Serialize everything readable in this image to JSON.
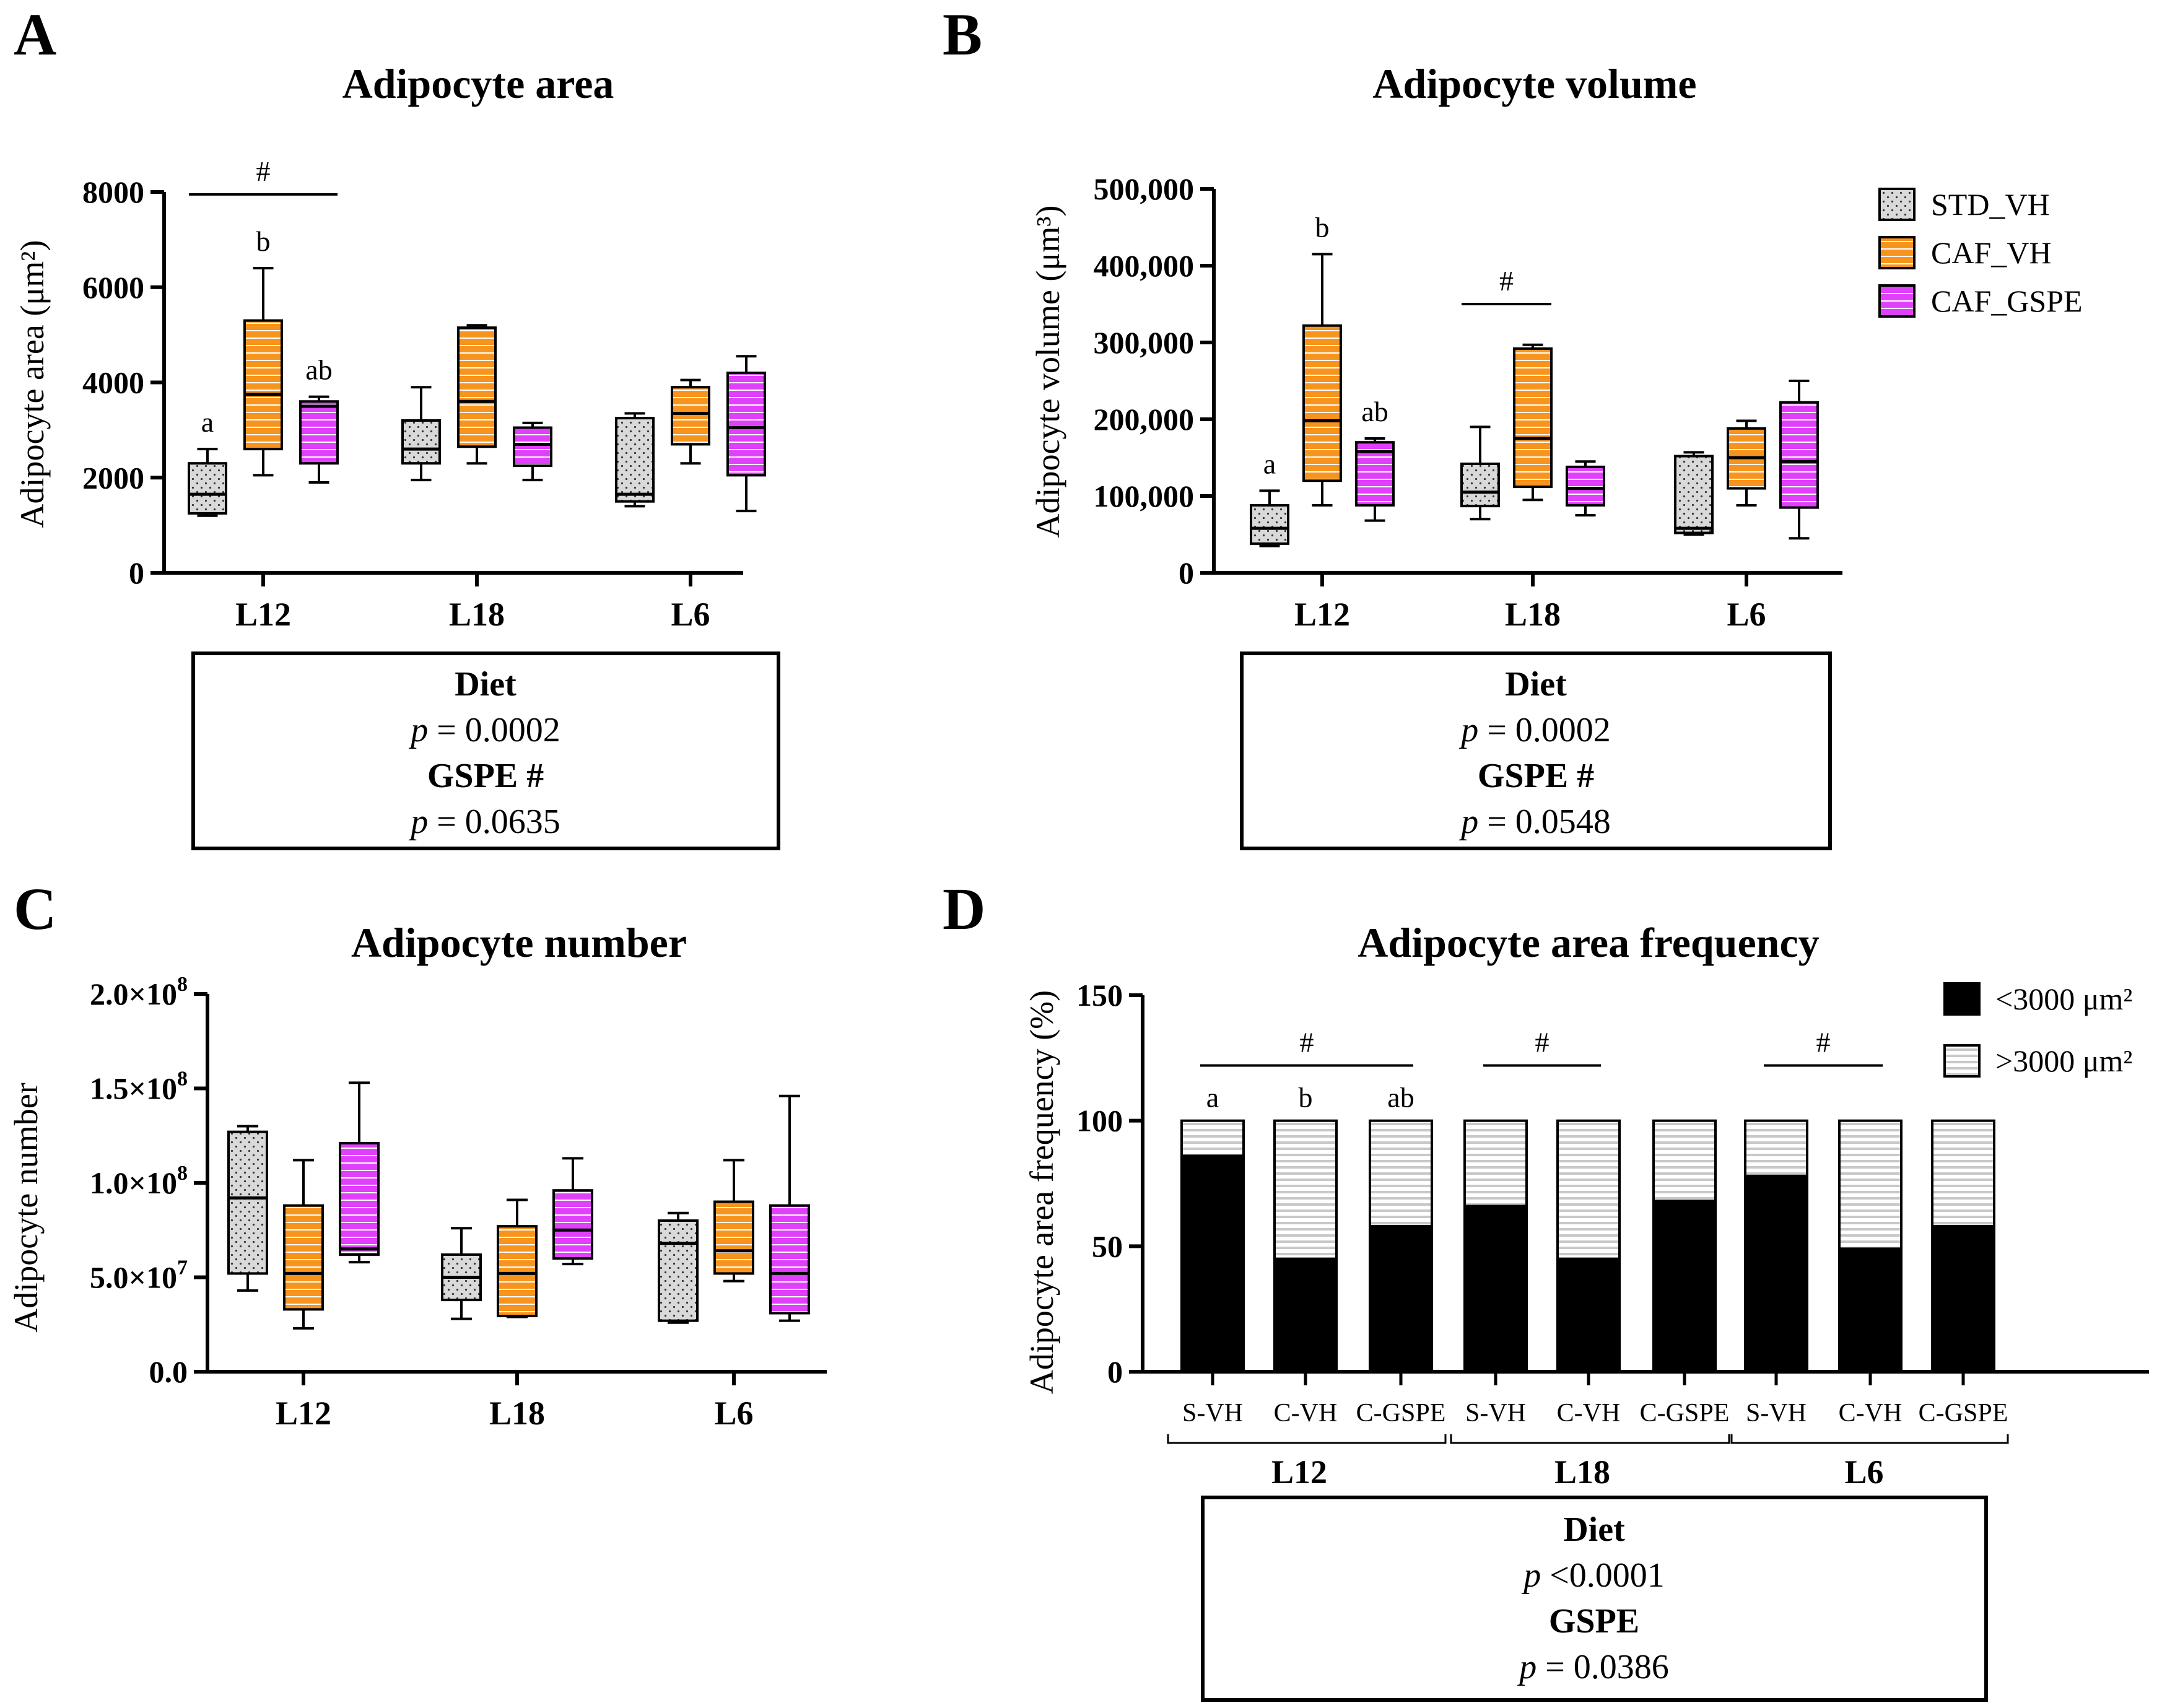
{
  "colors": {
    "std": "#d9d9d9",
    "caf": "#f7941d",
    "gspe": "#e040fb",
    "small": "#000000",
    "large": "#d0d0d0"
  },
  "legend": {
    "groups": [
      {
        "key": "std",
        "label": "STD_VH"
      },
      {
        "key": "caf",
        "label": "CAF_VH"
      },
      {
        "key": "gspe",
        "label": "CAF_GSPE"
      }
    ],
    "freq": [
      {
        "key": "small",
        "label": "<3000 μm²"
      },
      {
        "key": "large",
        "label": ">3000 μm²"
      }
    ]
  },
  "chart_data": [
    {
      "id": "A",
      "letter": "A",
      "type": "box",
      "title": "Adipocyte area",
      "ylabel": "Adipocyte area (μm²)",
      "ylim": [
        0,
        8000
      ],
      "yticks": [
        0,
        2000,
        4000,
        6000,
        8000
      ],
      "ytick_labels": [
        "0",
        "2000",
        "4000",
        "6000",
        "8000"
      ],
      "categories": [
        "L12",
        "L18",
        "L6"
      ],
      "series": [
        {
          "name": "STD_VH",
          "key": "std",
          "boxes": [
            {
              "min": 1200,
              "q1": 1250,
              "median": 1650,
              "q3": 2300,
              "max": 2600
            },
            {
              "min": 1950,
              "q1": 2300,
              "median": 2600,
              "q3": 3200,
              "max": 3900
            },
            {
              "min": 1400,
              "q1": 1500,
              "median": 1650,
              "q3": 3250,
              "max": 3350
            }
          ]
        },
        {
          "name": "CAF_VH",
          "key": "caf",
          "boxes": [
            {
              "min": 2050,
              "q1": 2600,
              "median": 3750,
              "q3": 5300,
              "max": 6400
            },
            {
              "min": 2300,
              "q1": 2650,
              "median": 3600,
              "q3": 5150,
              "max": 5200
            },
            {
              "min": 2300,
              "q1": 2700,
              "median": 3350,
              "q3": 3900,
              "max": 4050
            }
          ]
        },
        {
          "name": "CAF_GSPE",
          "key": "gspe",
          "boxes": [
            {
              "min": 1900,
              "q1": 2300,
              "median": 3500,
              "q3": 3600,
              "max": 3700
            },
            {
              "min": 1950,
              "q1": 2250,
              "median": 2700,
              "q3": 3050,
              "max": 3150
            },
            {
              "min": 1300,
              "q1": 2050,
              "median": 3050,
              "q3": 4200,
              "max": 4550
            }
          ]
        }
      ],
      "letters": [
        {
          "cat": 0,
          "series": 0,
          "text": "a"
        },
        {
          "cat": 0,
          "series": 1,
          "text": "b"
        },
        {
          "cat": 0,
          "series": 2,
          "text": "ab"
        }
      ],
      "brackets": [
        {
          "cat": 0,
          "from": 0,
          "to": 2,
          "text": "#",
          "y": 7950
        }
      ],
      "stats": {
        "l1": "Diet",
        "p1_label": "p",
        "p1_value": " = 0.0002",
        "l2": "GSPE #",
        "p2_label": "p",
        "p2_value": " = 0.0635"
      }
    },
    {
      "id": "B",
      "letter": "B",
      "type": "box",
      "title": "Adipocyte volume",
      "ylabel": "Adipocyte volume (μm³)",
      "ylim": [
        0,
        500000
      ],
      "yticks": [
        0,
        100000,
        200000,
        300000,
        400000,
        500000
      ],
      "ytick_labels": [
        "0",
        "100,000",
        "200,000",
        "300,000",
        "400,000",
        "500,000"
      ],
      "categories": [
        "L12",
        "L18",
        "L6"
      ],
      "series": [
        {
          "name": "STD_VH",
          "key": "std",
          "boxes": [
            {
              "min": 35000,
              "q1": 38000,
              "median": 58000,
              "q3": 88000,
              "max": 107000
            },
            {
              "min": 70000,
              "q1": 87000,
              "median": 105000,
              "q3": 142000,
              "max": 190000
            },
            {
              "min": 50000,
              "q1": 52000,
              "median": 58000,
              "q3": 152000,
              "max": 157000
            }
          ]
        },
        {
          "name": "CAF_VH",
          "key": "caf",
          "boxes": [
            {
              "min": 88000,
              "q1": 120000,
              "median": 198000,
              "q3": 322000,
              "max": 415000
            },
            {
              "min": 95000,
              "q1": 112000,
              "median": 175000,
              "q3": 292000,
              "max": 297000
            },
            {
              "min": 88000,
              "q1": 110000,
              "median": 150000,
              "q3": 188000,
              "max": 198000
            }
          ]
        },
        {
          "name": "CAF_GSPE",
          "key": "gspe",
          "boxes": [
            {
              "min": 68000,
              "q1": 88000,
              "median": 158000,
              "q3": 170000,
              "max": 175000
            },
            {
              "min": 75000,
              "q1": 88000,
              "median": 110000,
              "q3": 138000,
              "max": 145000
            },
            {
              "min": 45000,
              "q1": 85000,
              "median": 145000,
              "q3": 222000,
              "max": 250000
            }
          ]
        }
      ],
      "letters": [
        {
          "cat": 0,
          "series": 0,
          "text": "a"
        },
        {
          "cat": 0,
          "series": 1,
          "text": "b"
        },
        {
          "cat": 0,
          "series": 2,
          "text": "ab"
        }
      ],
      "brackets": [
        {
          "cat": 1,
          "from": 0,
          "to": 1,
          "text": "#",
          "y": 350000
        }
      ],
      "stats": {
        "l1": "Diet",
        "p1_label": "p",
        "p1_value": " = 0.0002",
        "l2": "GSPE #",
        "p2_label": "p",
        "p2_value": " = 0.0548"
      }
    },
    {
      "id": "C",
      "letter": "C",
      "type": "box",
      "title": "Adipocyte number",
      "ylabel": "Adipocyte number",
      "ylim": [
        0,
        200000000
      ],
      "yticks": [
        0,
        50000000,
        100000000,
        150000000,
        200000000
      ],
      "ytick_labels": [
        {
          "m": "0.0",
          "e": ""
        },
        {
          "m": "5.0×10",
          "e": "7"
        },
        {
          "m": "1.0×10",
          "e": "8"
        },
        {
          "m": "1.5×10",
          "e": "8"
        },
        {
          "m": "2.0×10",
          "e": "8"
        }
      ],
      "categories": [
        "L12",
        "L18",
        "L6"
      ],
      "series": [
        {
          "name": "STD_VH",
          "key": "std",
          "boxes": [
            {
              "min": 43000000,
              "q1": 52000000,
              "median": 92000000,
              "q3": 127000000,
              "max": 130000000
            },
            {
              "min": 28000000,
              "q1": 38000000,
              "median": 50000000,
              "q3": 62000000,
              "max": 76000000
            },
            {
              "min": 26000000,
              "q1": 27000000,
              "median": 68000000,
              "q3": 80000000,
              "max": 84000000
            }
          ]
        },
        {
          "name": "CAF_VH",
          "key": "caf",
          "boxes": [
            {
              "min": 23000000,
              "q1": 33000000,
              "median": 52000000,
              "q3": 88000000,
              "max": 112000000
            },
            {
              "min": 29000000,
              "q1": 29500000,
              "median": 52000000,
              "q3": 77000000,
              "max": 91000000
            },
            {
              "min": 48000000,
              "q1": 52000000,
              "median": 64000000,
              "q3": 90000000,
              "max": 112000000
            }
          ]
        },
        {
          "name": "CAF_GSPE",
          "key": "gspe",
          "boxes": [
            {
              "min": 58000000,
              "q1": 62000000,
              "median": 65000000,
              "q3": 121000000,
              "max": 153000000
            },
            {
              "min": 57000000,
              "q1": 60000000,
              "median": 75000000,
              "q3": 96000000,
              "max": 113000000
            },
            {
              "min": 27000000,
              "q1": 31000000,
              "median": 52000000,
              "q3": 88000000,
              "max": 146000000
            }
          ]
        }
      ],
      "letters": [],
      "brackets": []
    },
    {
      "id": "D",
      "letter": "D",
      "type": "stacked-bar",
      "title": "Adipocyte area frequency",
      "ylabel": "Adipocyte area frequency (%)",
      "ylim": [
        0,
        150
      ],
      "yticks": [
        0,
        50,
        100,
        150
      ],
      "ytick_labels": [
        "0",
        "50",
        "100",
        "150"
      ],
      "bars": [
        "S-VH",
        "C-VH",
        "C-GSPE",
        "S-VH",
        "C-VH",
        "C-GSPE",
        "S-VH",
        "C-VH",
        "C-GSPE"
      ],
      "groups": [
        "L12",
        "L18",
        "L6"
      ],
      "series": [
        {
          "name": "<3000 μm²",
          "key": "small",
          "values": [
            86,
            45,
            58,
            66,
            45,
            68,
            78,
            49,
            58
          ]
        },
        {
          "name": ">3000 μm²",
          "key": "large",
          "values": [
            14,
            55,
            42,
            34,
            55,
            32,
            22,
            51,
            42
          ]
        }
      ],
      "letters": [
        {
          "bar": 0,
          "text": "a"
        },
        {
          "bar": 1,
          "text": "b"
        },
        {
          "bar": 2,
          "text": "ab"
        }
      ],
      "brackets": [
        {
          "from": 0,
          "to": 2,
          "text": "#",
          "y": 122
        },
        {
          "from": 3,
          "to": 4,
          "text": "#",
          "y": 122
        },
        {
          "from": 6,
          "to": 7,
          "text": "#",
          "y": 122
        }
      ],
      "stats": {
        "l1": "Diet",
        "p1_label": "p",
        "p1_value": " <0.0001",
        "l2": "GSPE",
        "p2_label": "p",
        "p2_value": " = 0.0386"
      }
    }
  ]
}
